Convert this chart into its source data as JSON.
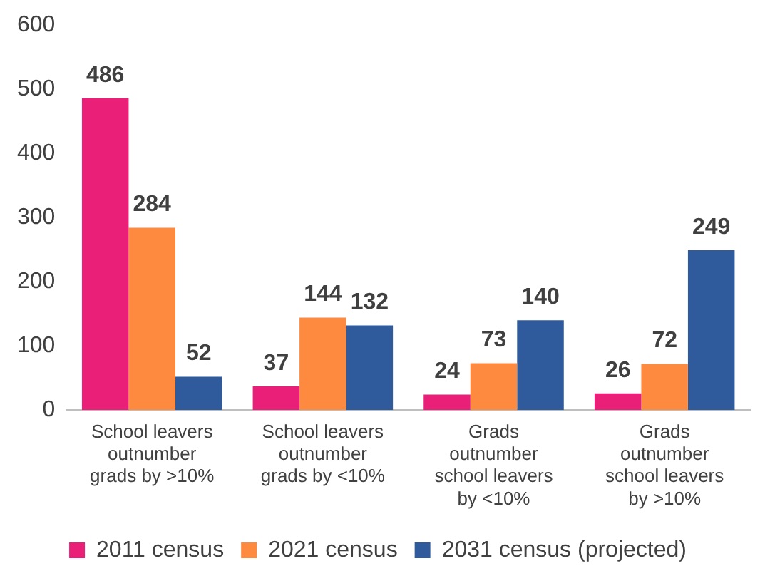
{
  "chart_data": {
    "type": "bar",
    "categories": [
      "School leavers outnumber grads by >10%",
      "School leavers outnumber grads by <10%",
      "Grads outnumber school leavers by <10%",
      "Grads outnumber school leavers by >10%"
    ],
    "series": [
      {
        "name": "2011 census",
        "color": "#e91f78",
        "values": [
          486,
          37,
          24,
          26
        ]
      },
      {
        "name": "2021 census",
        "color": "#fd8a3f",
        "values": [
          284,
          144,
          73,
          72
        ]
      },
      {
        "name": "2031 census (projected)",
        "color": "#2f5b9c",
        "values": [
          52,
          132,
          140,
          249
        ]
      }
    ],
    "ylim": [
      0,
      600
    ],
    "yticks": [
      0,
      100,
      200,
      300,
      400,
      500,
      600
    ],
    "grid": false,
    "legend": "bottom",
    "data_labels": true
  }
}
